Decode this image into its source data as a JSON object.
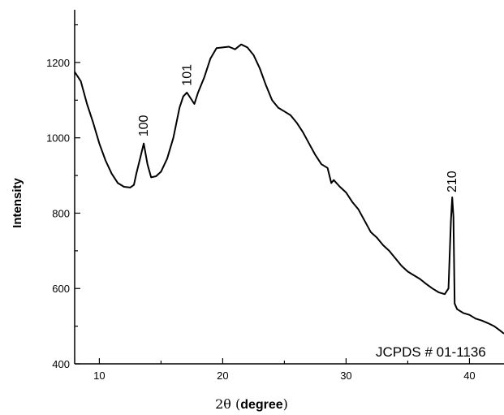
{
  "chart_data": {
    "type": "line",
    "xlabel_symbol": "2θ (",
    "xlabel_unit": "degree",
    "xlabel_close": ")",
    "ylabel": "Intensity",
    "xlim": [
      8,
      42.8
    ],
    "ylim": [
      400,
      1340
    ],
    "x_ticks": [
      10,
      20,
      30,
      40
    ],
    "y_ticks": [
      400,
      600,
      800,
      1000,
      1200
    ],
    "reference_label": "JCPDS # 01-1136",
    "peak_labels": [
      {
        "text": "100",
        "x": 13.6,
        "y": 990
      },
      {
        "text": "101",
        "x": 17.1,
        "y": 1125
      },
      {
        "text": "210",
        "x": 38.6,
        "y": 842
      }
    ],
    "series": [
      {
        "x": [
          8.0,
          8.5,
          9.0,
          9.5,
          10.0,
          10.5,
          11.0,
          11.5,
          12.0,
          12.5,
          12.8,
          13.0,
          13.3,
          13.6,
          13.9,
          14.2,
          14.6,
          15.0,
          15.5,
          16.0,
          16.5,
          16.8,
          17.1,
          17.4,
          17.7,
          18.0,
          18.5,
          19.0,
          19.5,
          20.0,
          20.5,
          21.0,
          21.5,
          22.0,
          22.5,
          23.0,
          23.5,
          24.0,
          24.5,
          25.0,
          25.5,
          26.0,
          26.5,
          27.0,
          27.5,
          28.0,
          28.5,
          28.8,
          29.0,
          29.5,
          30.0,
          30.5,
          31.0,
          31.5,
          32.0,
          32.5,
          33.0,
          33.5,
          34.0,
          34.5,
          35.0,
          35.5,
          36.0,
          36.5,
          37.0,
          37.5,
          38.0,
          38.3,
          38.5,
          38.6,
          38.7,
          38.8,
          39.0,
          39.5,
          40.0,
          40.5,
          41.0,
          41.5,
          42.0,
          42.5,
          42.8
        ],
        "y": [
          1175,
          1150,
          1090,
          1040,
          985,
          940,
          905,
          880,
          870,
          868,
          875,
          905,
          945,
          985,
          930,
          895,
          898,
          910,
          945,
          1000,
          1080,
          1110,
          1120,
          1105,
          1090,
          1120,
          1160,
          1210,
          1238,
          1240,
          1242,
          1235,
          1248,
          1240,
          1220,
          1185,
          1140,
          1100,
          1080,
          1070,
          1060,
          1040,
          1015,
          985,
          955,
          930,
          920,
          880,
          888,
          870,
          855,
          830,
          810,
          780,
          750,
          735,
          715,
          700,
          680,
          660,
          645,
          635,
          625,
          612,
          600,
          590,
          585,
          600,
          780,
          842,
          790,
          560,
          545,
          535,
          530,
          520,
          515,
          508,
          500,
          488,
          480
        ]
      }
    ],
    "grid": false,
    "legend": "none"
  }
}
